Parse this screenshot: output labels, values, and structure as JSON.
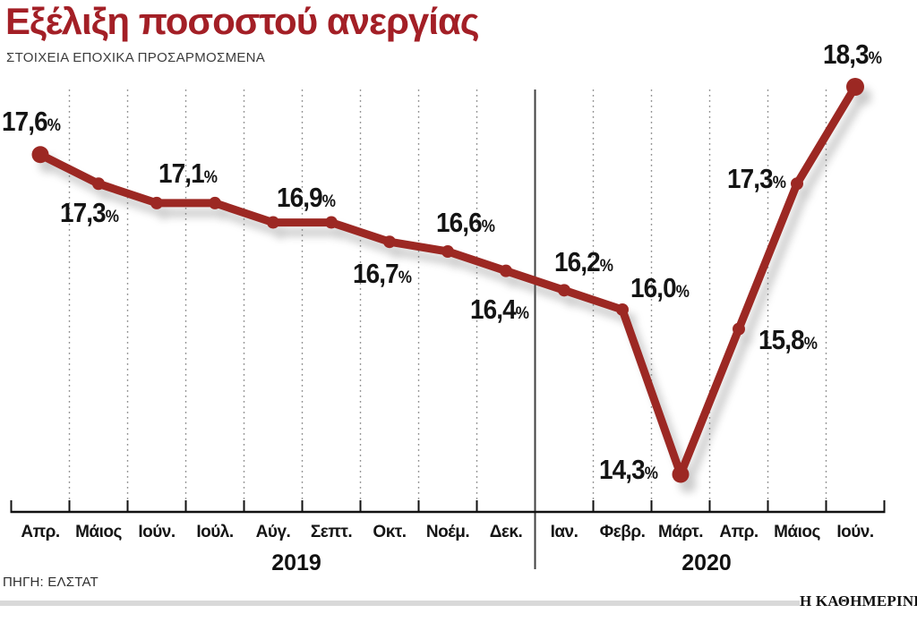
{
  "title": "Εξέλιξη ποσοστού ανεργίας",
  "subtitle": "ΣΤΟΙΧΕΙΑ ΕΠΟΧΙΚΑ ΠΡΟΣΑΡΜΟΣΜΕΝΑ",
  "source": "ΠΗΓΗ: ΕΛΣΤΑΤ",
  "brand": "Η ΚΑΘΗΜΕΡΙΝΗ",
  "chart_data": {
    "type": "line",
    "title": "Εξέλιξη ποσοστού ανεργίας",
    "subtitle": "ΣΤΟΙΧΕΙΑ ΕΠΟΧΙΚΑ ΠΡΟΣΑΡΜΟΣΜΕΝΑ",
    "unit": "%",
    "grid": "vertical-dotted",
    "legend": "none",
    "ylim": [
      14.0,
      18.4
    ],
    "line_color": "#9c2823",
    "title_color": "#a31f26",
    "x_groups": [
      {
        "year": "2019",
        "months": [
          "Απρ.",
          "Μάιος",
          "Ιούν.",
          "Ιούλ.",
          "Αύγ.",
          "Σεπτ.",
          "Οκτ.",
          "Νοέμ.",
          "Δεκ."
        ]
      },
      {
        "year": "2020",
        "months": [
          "Ιαν.",
          "Φεβρ.",
          "Μάρτ.",
          "Απρ.",
          "Μάιος",
          "Ιούν."
        ]
      }
    ],
    "categories": [
      "Απρ. 2019",
      "Μάιος 2019",
      "Ιούν. 2019",
      "Ιούλ. 2019",
      "Αύγ. 2019",
      "Σεπτ. 2019",
      "Οκτ. 2019",
      "Νοέμ. 2019",
      "Δεκ. 2019",
      "Ιαν. 2020",
      "Φεβρ. 2020",
      "Μάρτ. 2020",
      "Απρ. 2020",
      "Μάιος 2020",
      "Ιούν. 2020"
    ],
    "values": [
      17.6,
      17.3,
      17.1,
      17.1,
      16.9,
      16.9,
      16.7,
      16.6,
      16.4,
      16.2,
      16.0,
      14.3,
      15.8,
      17.3,
      18.3
    ],
    "point_labels": [
      "17,6%",
      "17,3%",
      "17,1%",
      "",
      "16,9%",
      "",
      "16,7%",
      "16,6%",
      "16,4%",
      "16,2%",
      "16,0%",
      "14,3%",
      "15,8%",
      "17,3%",
      "18,3%"
    ]
  }
}
